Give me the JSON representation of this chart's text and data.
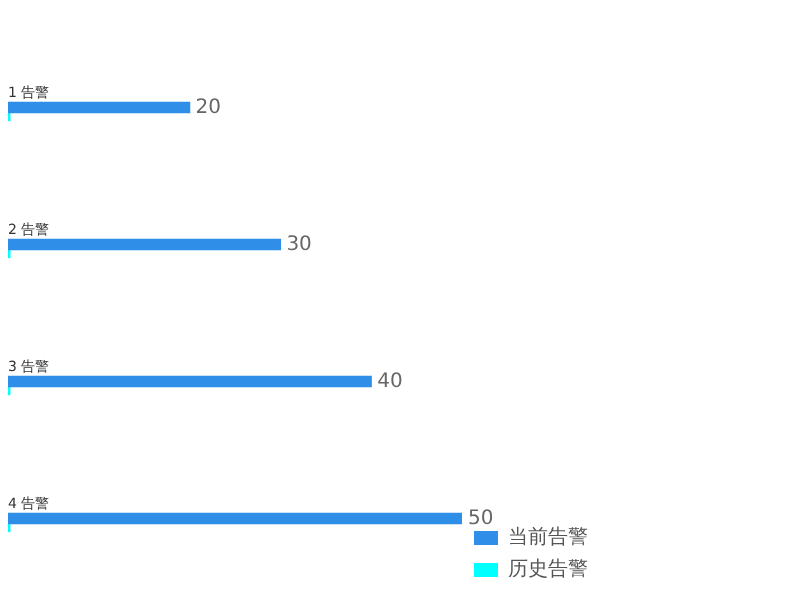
{
  "chart_data": {
    "type": "bar",
    "orientation": "horizontal",
    "categories": [
      "1 告警",
      "2 告警",
      "3 告警",
      "4 告警"
    ],
    "series": [
      {
        "name": "当前告警",
        "color": "#2f8fe8",
        "values": [
          20,
          30,
          40,
          50
        ],
        "value_labels": [
          "20",
          "30",
          "40",
          "50"
        ]
      },
      {
        "name": "历史告警",
        "color": "#00ffff",
        "values": [
          0.2,
          0.2,
          0.2,
          0.2
        ]
      }
    ],
    "legend": "bottom right"
  }
}
